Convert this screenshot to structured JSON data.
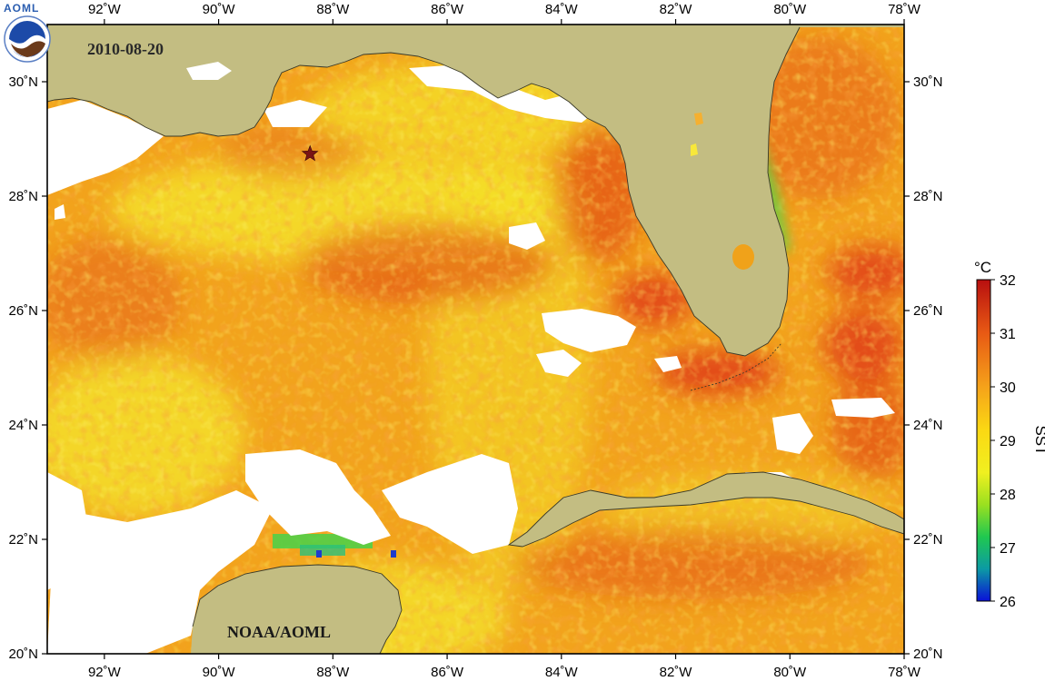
{
  "map": {
    "date": "2010-08-20",
    "credit": "NOAA/AOML",
    "logo_text": "AOML",
    "extent": {
      "lon_min": -93,
      "lon_max": -78,
      "lat_min": 20,
      "lat_max": 31
    },
    "x_ticks": [
      {
        "lon": -92,
        "label": "92˚W"
      },
      {
        "lon": -90,
        "label": "90˚W"
      },
      {
        "lon": -88,
        "label": "88˚W"
      },
      {
        "lon": -86,
        "label": "86˚W"
      },
      {
        "lon": -84,
        "label": "84˚W"
      },
      {
        "lon": -82,
        "label": "82˚W"
      },
      {
        "lon": -80,
        "label": "80˚W"
      },
      {
        "lon": -78,
        "label": "78˚W"
      }
    ],
    "y_ticks": [
      {
        "lat": 30,
        "label": "30˚N"
      },
      {
        "lat": 28,
        "label": "28˚N"
      },
      {
        "lat": 26,
        "label": "26˚N"
      },
      {
        "lat": 24,
        "label": "24˚N"
      },
      {
        "lat": 22,
        "label": "22˚N"
      },
      {
        "lat": 20,
        "label": "20˚N"
      }
    ],
    "marker": {
      "lon": -88.4,
      "lat": 28.74,
      "symbol": "star",
      "color": "#7a1414"
    },
    "colors": {
      "land": "#c3bd82",
      "coast": "#3a3a2a",
      "nodata": "#ffffff",
      "sst_base": "#f2a31c",
      "warm": "#e03d16",
      "cool": "#f4e22a"
    }
  },
  "colorbar": {
    "unit": "°C",
    "title": "SST",
    "min": 26,
    "max": 32,
    "ticks": [
      "32",
      "31",
      "30",
      "29",
      "28",
      "27",
      "26"
    ],
    "stops": [
      {
        "v": 26,
        "color": "#0a10d8"
      },
      {
        "v": 26.6,
        "color": "#0c9aa4"
      },
      {
        "v": 27.2,
        "color": "#20c850"
      },
      {
        "v": 27.8,
        "color": "#9ae020"
      },
      {
        "v": 28.4,
        "color": "#f0f020"
      },
      {
        "v": 29.2,
        "color": "#fbd813"
      },
      {
        "v": 30.0,
        "color": "#f5a21a"
      },
      {
        "v": 31.0,
        "color": "#e85a14"
      },
      {
        "v": 32.0,
        "color": "#b80f0f"
      }
    ]
  }
}
